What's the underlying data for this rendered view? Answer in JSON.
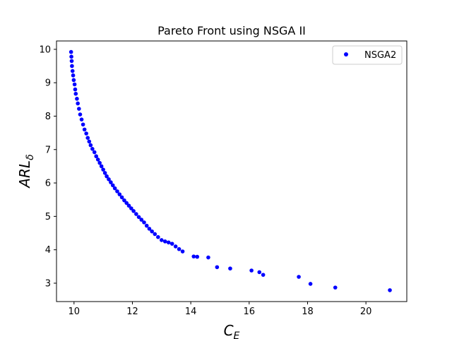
{
  "chart_data": {
    "type": "scatter",
    "title": "Pareto Front using NSGA II",
    "xlabel_main": "C",
    "xlabel_sub": "E",
    "ylabel_main": "ARL",
    "ylabel_sub": "δ",
    "xlim": [
      9.4,
      21.4
    ],
    "ylim": [
      2.45,
      10.25
    ],
    "xticks": [
      10,
      12,
      14,
      16,
      18,
      20
    ],
    "yticks": [
      3,
      4,
      5,
      6,
      7,
      8,
      9,
      10
    ],
    "grid": false,
    "legend_position": "top-right",
    "series": [
      {
        "name": "NSGA2",
        "color": "#0000ff",
        "marker": "circle",
        "x": [
          9.9,
          9.91,
          9.92,
          9.93,
          9.95,
          9.97,
          9.99,
          10.02,
          10.04,
          10.06,
          10.1,
          10.13,
          10.17,
          10.21,
          10.26,
          10.31,
          10.36,
          10.42,
          10.47,
          10.52,
          10.57,
          10.63,
          10.7,
          10.76,
          10.82,
          10.88,
          10.94,
          11.0,
          11.06,
          11.12,
          11.19,
          11.26,
          11.33,
          11.4,
          11.48,
          11.56,
          11.64,
          11.72,
          11.8,
          11.88,
          11.96,
          12.04,
          12.13,
          12.22,
          12.31,
          12.4,
          12.49,
          12.58,
          12.67,
          12.77,
          12.88,
          13.0,
          13.12,
          13.24,
          13.36,
          13.48,
          13.6,
          13.72,
          14.1,
          14.22,
          14.6,
          14.9,
          15.35,
          16.08,
          16.35,
          16.48,
          17.7,
          18.1,
          18.95,
          20.82
        ],
        "y": [
          9.92,
          9.78,
          9.65,
          9.5,
          9.35,
          9.22,
          9.08,
          8.95,
          8.8,
          8.67,
          8.52,
          8.38,
          8.22,
          8.05,
          7.9,
          7.75,
          7.6,
          7.48,
          7.35,
          7.24,
          7.13,
          7.02,
          6.92,
          6.8,
          6.7,
          6.6,
          6.5,
          6.4,
          6.3,
          6.2,
          6.11,
          6.02,
          5.93,
          5.84,
          5.75,
          5.66,
          5.57,
          5.48,
          5.4,
          5.32,
          5.24,
          5.16,
          5.07,
          4.98,
          4.9,
          4.82,
          4.72,
          4.63,
          4.55,
          4.47,
          4.38,
          4.29,
          4.25,
          4.22,
          4.18,
          4.1,
          4.02,
          3.95,
          3.8,
          3.79,
          3.77,
          3.48,
          3.44,
          3.38,
          3.33,
          3.25,
          3.19,
          2.98,
          2.87,
          2.79
        ]
      }
    ]
  }
}
